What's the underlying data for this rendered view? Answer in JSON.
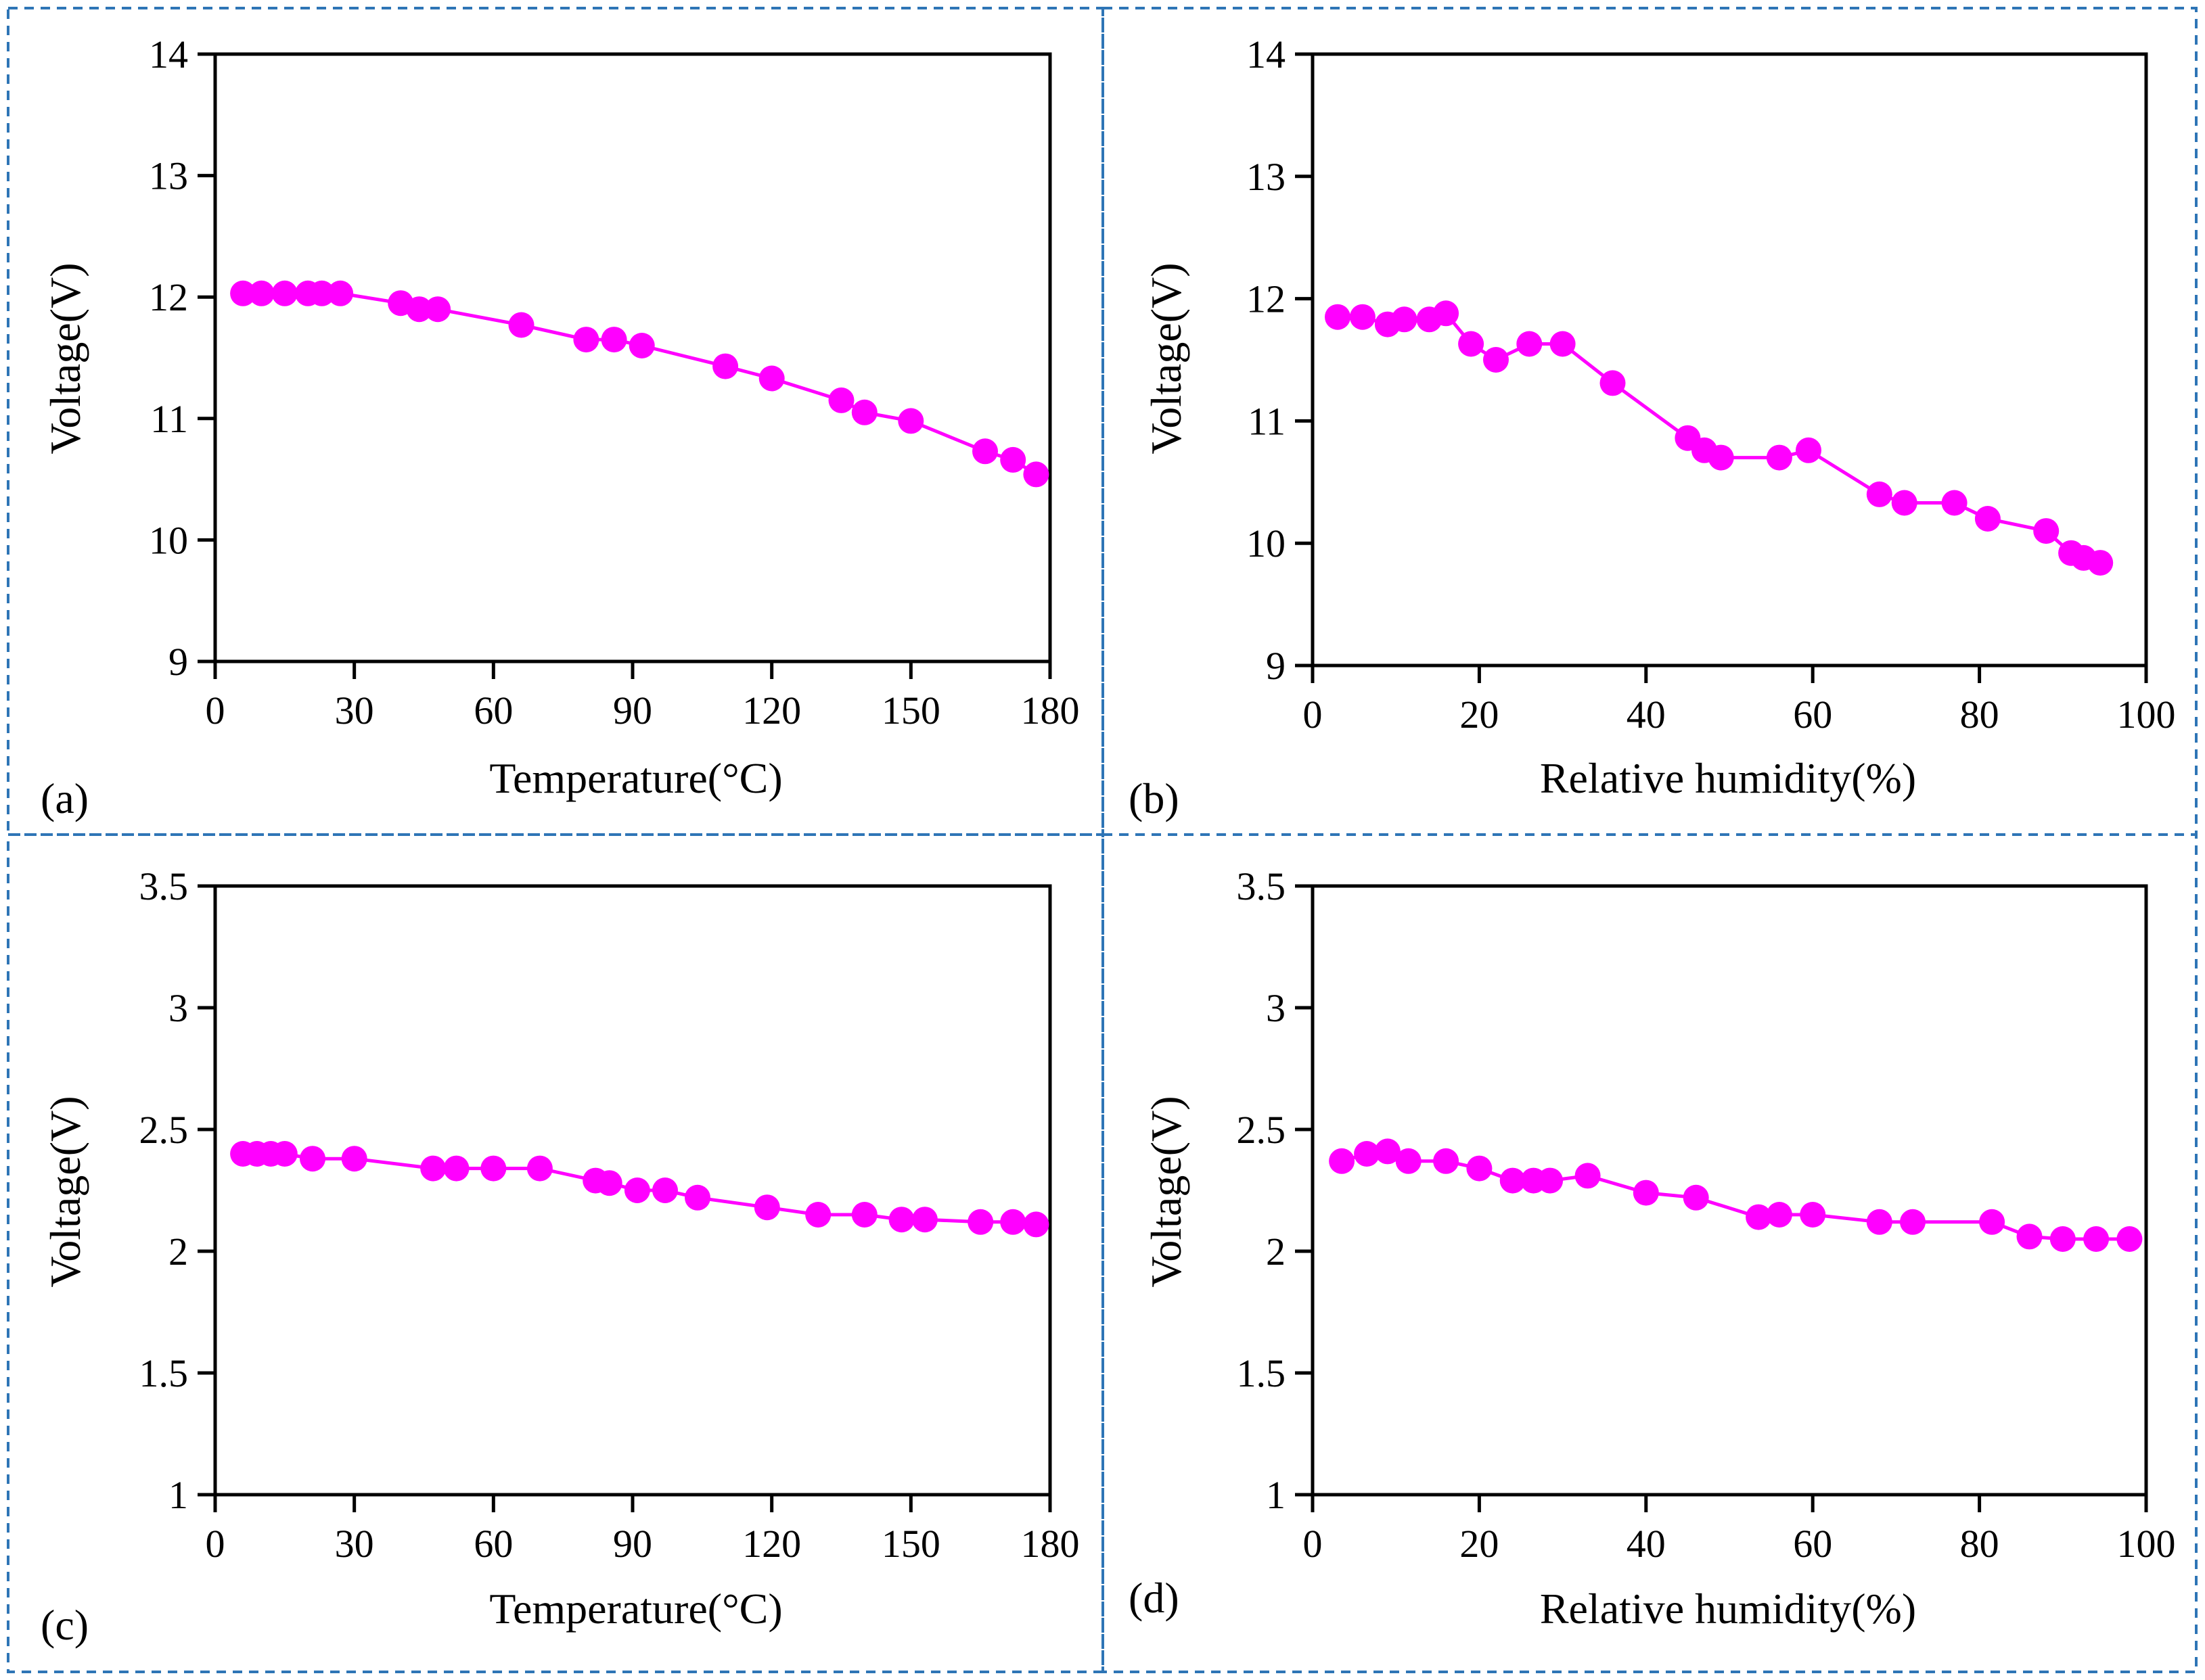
{
  "figure": {
    "marker_color": "#FF00FF",
    "border_color": "#2E75B6",
    "axis_color": "#000000"
  },
  "chart_data": [
    {
      "type": "line",
      "panel_label": "(a)",
      "xlabel": "Temperature(°C)",
      "ylabel": "Voltage(V)",
      "xlim": [
        0,
        180
      ],
      "ylim": [
        9,
        14
      ],
      "xticks": [
        0,
        30,
        60,
        90,
        120,
        150,
        180
      ],
      "yticks": [
        9,
        10,
        11,
        12,
        13,
        14
      ],
      "xtick_labels": [
        "0",
        "30",
        "60",
        "90",
        "120",
        "150",
        "180"
      ],
      "ytick_labels": [
        "9",
        "10",
        "11",
        "12",
        "13",
        "14"
      ],
      "series": [
        {
          "name": "Voltage",
          "x": [
            6,
            10,
            15,
            20,
            23,
            27,
            40,
            44,
            48,
            66,
            80,
            86,
            92,
            110,
            120,
            135,
            140,
            150,
            166,
            172,
            177
          ],
          "y": [
            12.03,
            12.03,
            12.03,
            12.03,
            12.03,
            12.03,
            11.95,
            11.9,
            11.9,
            11.77,
            11.65,
            11.65,
            11.6,
            11.43,
            11.33,
            11.15,
            11.05,
            10.98,
            10.73,
            10.66,
            10.54
          ]
        }
      ]
    },
    {
      "type": "line",
      "panel_label": "(b)",
      "xlabel": "Relative humidity(%)",
      "ylabel": "Voltage(V)",
      "xlim": [
        0,
        100
      ],
      "ylim": [
        9,
        14
      ],
      "xticks": [
        0,
        20,
        40,
        60,
        80,
        100
      ],
      "yticks": [
        9,
        10,
        11,
        12,
        13,
        14
      ],
      "xtick_labels": [
        "0",
        "20",
        "40",
        "60",
        "80",
        "100"
      ],
      "ytick_labels": [
        "9",
        "10",
        "11",
        "12",
        "13",
        "14"
      ],
      "series": [
        {
          "name": "Voltage",
          "x": [
            3,
            6,
            9,
            11,
            14,
            16,
            19,
            22,
            26,
            30,
            36,
            45,
            47,
            49,
            56,
            59.5,
            68,
            71,
            77,
            81,
            88,
            91,
            92.5,
            94.5
          ],
          "y": [
            11.85,
            11.85,
            11.79,
            11.83,
            11.83,
            11.88,
            11.63,
            11.5,
            11.63,
            11.63,
            11.31,
            10.86,
            10.76,
            10.7,
            10.7,
            10.76,
            10.4,
            10.33,
            10.33,
            10.2,
            10.1,
            9.92,
            9.88,
            9.84
          ]
        }
      ]
    },
    {
      "type": "line",
      "panel_label": "(c)",
      "xlabel": "Temperature(°C)",
      "ylabel": "Voltage(V)",
      "xlim": [
        0,
        180
      ],
      "ylim": [
        1,
        3.5
      ],
      "xticks": [
        0,
        30,
        60,
        90,
        120,
        150,
        180
      ],
      "yticks": [
        1,
        1.5,
        2,
        2.5,
        3,
        3.5
      ],
      "xtick_labels": [
        "0",
        "30",
        "60",
        "90",
        "120",
        "150",
        "180"
      ],
      "ytick_labels": [
        "1",
        "1.5",
        "2",
        "2.5",
        "3",
        "3.5"
      ],
      "series": [
        {
          "name": "Voltage",
          "x": [
            6,
            9,
            12,
            15,
            21,
            30,
            47,
            52,
            60,
            70,
            82,
            85,
            91,
            97,
            104,
            119,
            130,
            140,
            148,
            153,
            165,
            172,
            177
          ],
          "y": [
            2.4,
            2.4,
            2.4,
            2.4,
            2.38,
            2.38,
            2.34,
            2.34,
            2.34,
            2.34,
            2.29,
            2.28,
            2.25,
            2.25,
            2.22,
            2.18,
            2.15,
            2.15,
            2.13,
            2.13,
            2.12,
            2.12,
            2.11
          ]
        }
      ]
    },
    {
      "type": "line",
      "panel_label": "(d)",
      "xlabel": "Relative humidity(%)",
      "ylabel": "Voltage(V)",
      "xlim": [
        0,
        100
      ],
      "ylim": [
        1,
        3.5
      ],
      "xticks": [
        0,
        20,
        40,
        60,
        80,
        100
      ],
      "yticks": [
        1,
        1.5,
        2,
        2.5,
        3,
        3.5
      ],
      "xtick_labels": [
        "0",
        "20",
        "40",
        "60",
        "80",
        "100"
      ],
      "ytick_labels": [
        "1",
        "1.5",
        "2",
        "2.5",
        "3",
        "3.5"
      ],
      "series": [
        {
          "name": "Voltage",
          "x": [
            3.5,
            6.5,
            9,
            11.5,
            16,
            20,
            24,
            26.5,
            28.5,
            33,
            40,
            46,
            53.5,
            56,
            60,
            68,
            72,
            81.5,
            86,
            90,
            94,
            98
          ],
          "y": [
            2.37,
            2.4,
            2.41,
            2.37,
            2.37,
            2.34,
            2.29,
            2.29,
            2.29,
            2.31,
            2.24,
            2.22,
            2.14,
            2.15,
            2.15,
            2.12,
            2.12,
            2.12,
            2.06,
            2.05,
            2.05,
            2.05
          ]
        }
      ]
    }
  ]
}
